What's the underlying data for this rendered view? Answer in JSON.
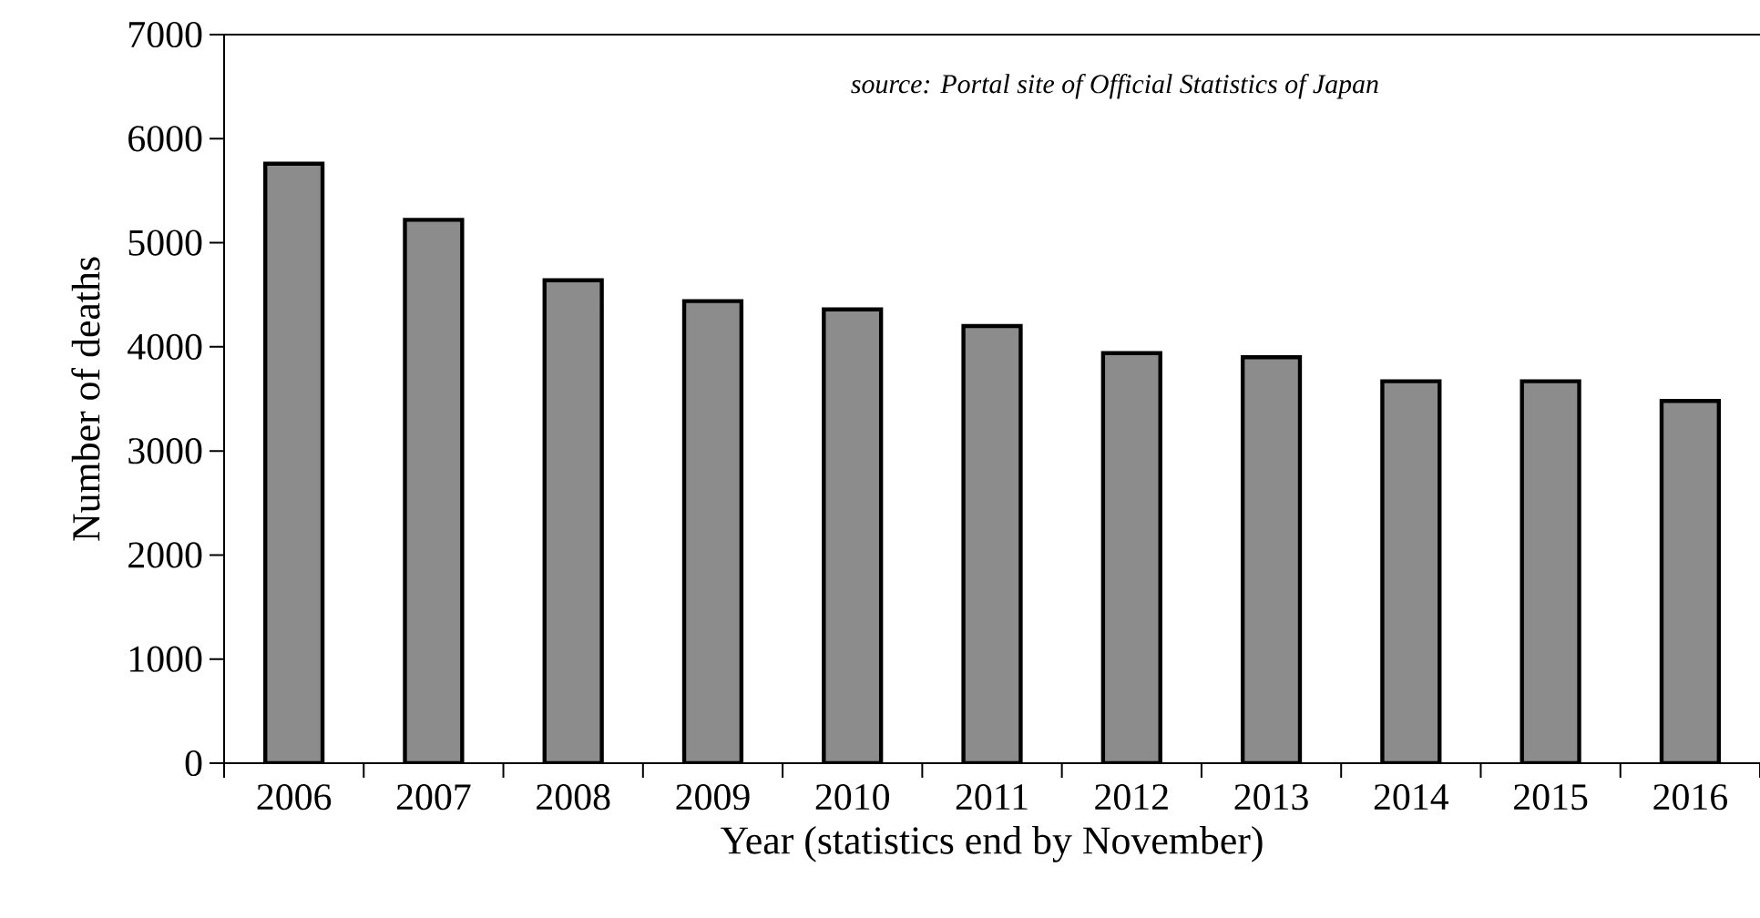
{
  "chart_data": {
    "type": "bar",
    "xlabel": "Year (statistics end by November)",
    "ylabel": "Number of deaths",
    "annotations": [
      "source: Portal site of Official Statistics of Japan"
    ],
    "categories": [
      "2006",
      "2007",
      "2008",
      "2009",
      "2010",
      "2011",
      "2012",
      "2013",
      "2014",
      "2015",
      "2016"
    ],
    "values": [
      5760,
      5220,
      4640,
      4440,
      4360,
      4200,
      3940,
      3900,
      3670,
      3670,
      3480
    ],
    "color": "#8c8c8c",
    "ylim": [
      0,
      7000
    ],
    "yticks": [
      0,
      1000,
      2000,
      3000,
      4000,
      5000,
      6000,
      7000
    ],
    "grid": false
  }
}
